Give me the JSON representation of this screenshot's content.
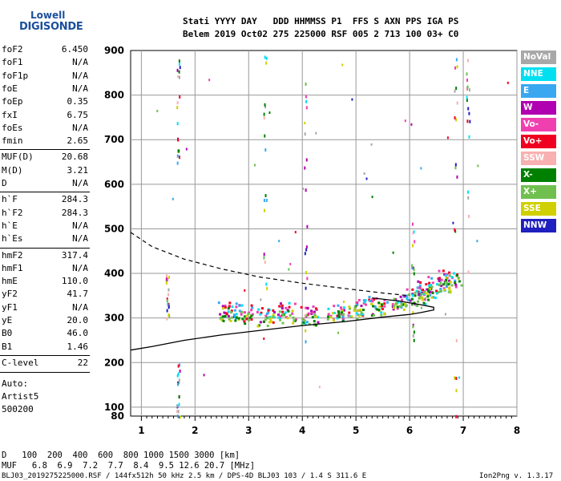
{
  "logo": {
    "brand": "Lowell",
    "name": "DIGISONDE"
  },
  "header": {
    "row1": "Stati YYYY DAY   DDD HHMMSS P1  FFS S AXN PPS IGA PS",
    "row2": "Belem 2019 Oct02 275 225000 RSF 005 2 713 100 03+ C0"
  },
  "params": [
    {
      "name": "foF2",
      "value": "6.450"
    },
    {
      "name": "foF1",
      "value": "N/A"
    },
    {
      "name": "foF1p",
      "value": "N/A"
    },
    {
      "name": "foE",
      "value": "N/A"
    },
    {
      "name": "foEp",
      "value": "0.35"
    },
    {
      "name": "fxI",
      "value": "6.75"
    },
    {
      "name": "foEs",
      "value": "N/A"
    },
    {
      "name": "fmin",
      "value": "2.65"
    },
    {
      "name": "MUF(D)",
      "value": "20.68"
    },
    {
      "name": "M(D)",
      "value": "3.21"
    },
    {
      "name": "D",
      "value": "N/A"
    },
    {
      "name": "h`F",
      "value": "284.3"
    },
    {
      "name": "h`F2",
      "value": "284.3"
    },
    {
      "name": "h`E",
      "value": "N/A"
    },
    {
      "name": "h`Es",
      "value": "N/A"
    },
    {
      "name": "hmF2",
      "value": "317.4"
    },
    {
      "name": "hmF1",
      "value": "N/A"
    },
    {
      "name": "hmE",
      "value": "110.0"
    },
    {
      "name": "yF2",
      "value": "41.7"
    },
    {
      "name": "yF1",
      "value": "N/A"
    },
    {
      "name": "yE",
      "value": "20.0"
    },
    {
      "name": "B0",
      "value": "46.0"
    },
    {
      "name": "B1",
      "value": "1.46"
    },
    {
      "name": "C-level",
      "value": "22"
    }
  ],
  "auto": {
    "line1": "Auto:",
    "line2": "Artist5",
    "line3": "500200"
  },
  "bottom": {
    "d_row": "D   100  200  400  600  800 1000 1500 3000 [km]",
    "muf_row": "MUF   6.8  6.9  7.2  7.7  8.4  9.5 12.6 20.7 [MHz]",
    "footer": "BLJ03_2019275225000.RSF / 144fx512h 50 kHz 2.5 km / DPS-4D BLJ03 103 / 1.4 S 311.6 E",
    "version": "Ion2Png v. 1.3.17"
  },
  "legend": [
    {
      "label": "NoVal",
      "color": "#a8a8a8"
    },
    {
      "label": "NNE",
      "color": "#00e0f0"
    },
    {
      "label": "E",
      "color": "#3aa8f0"
    },
    {
      "label": "W",
      "color": "#b000b0"
    },
    {
      "label": "Vo-",
      "color": "#f040b0"
    },
    {
      "label": "Vo+",
      "color": "#f00020"
    },
    {
      "label": "SSW",
      "color": "#f8b0b0"
    },
    {
      "label": "X-",
      "color": "#008000"
    },
    {
      "label": "X+",
      "color": "#70c050"
    },
    {
      "label": "SSE",
      "color": "#d0d000"
    },
    {
      "label": "NNW",
      "color": "#2020c0"
    }
  ],
  "chart_data": {
    "type": "scatter",
    "title": "",
    "xlabel": "",
    "ylabel": "",
    "xlim": [
      0.8,
      8.0
    ],
    "ylim": [
      80,
      900
    ],
    "xticks": [
      1,
      2,
      3,
      4,
      5,
      6,
      7,
      8
    ],
    "yticks": [
      80,
      100,
      200,
      300,
      400,
      500,
      600,
      700,
      800,
      900
    ],
    "grid": true,
    "profile_solid": [
      [
        0.8,
        228
      ],
      [
        1.2,
        236
      ],
      [
        1.8,
        250
      ],
      [
        2.5,
        262
      ],
      [
        3.2,
        272
      ],
      [
        4.0,
        283
      ],
      [
        4.8,
        292
      ],
      [
        5.5,
        302
      ],
      [
        6.0,
        308
      ],
      [
        6.2,
        312
      ],
      [
        6.45,
        318
      ],
      [
        6.45,
        324
      ],
      [
        6.2,
        330
      ],
      [
        5.8,
        338
      ],
      [
        5.3,
        345
      ]
    ],
    "profile_dashed": [
      [
        0.8,
        492
      ],
      [
        1.2,
        460
      ],
      [
        1.8,
        432
      ],
      [
        2.5,
        410
      ],
      [
        3.2,
        392
      ],
      [
        4.0,
        378
      ],
      [
        4.8,
        366
      ],
      [
        5.5,
        356
      ],
      [
        6.0,
        350
      ]
    ],
    "trace_o": [
      [
        2.6,
        320
      ],
      [
        2.9,
        315
      ],
      [
        3.3,
        305
      ],
      [
        3.7,
        318
      ],
      [
        4.1,
        310
      ],
      [
        4.6,
        318
      ],
      [
        5.0,
        324
      ],
      [
        5.4,
        330
      ],
      [
        5.8,
        340
      ],
      [
        6.1,
        352
      ],
      [
        6.3,
        365
      ],
      [
        6.5,
        378
      ],
      [
        6.7,
        390
      ]
    ],
    "trace_x": [
      [
        2.6,
        310
      ],
      [
        2.9,
        302
      ],
      [
        3.3,
        298
      ],
      [
        3.7,
        305
      ],
      [
        4.1,
        300
      ],
      [
        4.6,
        308
      ],
      [
        5.0,
        314
      ],
      [
        5.4,
        322
      ],
      [
        5.8,
        333
      ],
      [
        6.1,
        345
      ],
      [
        6.3,
        358
      ],
      [
        6.6,
        372
      ],
      [
        6.8,
        385
      ]
    ]
  }
}
